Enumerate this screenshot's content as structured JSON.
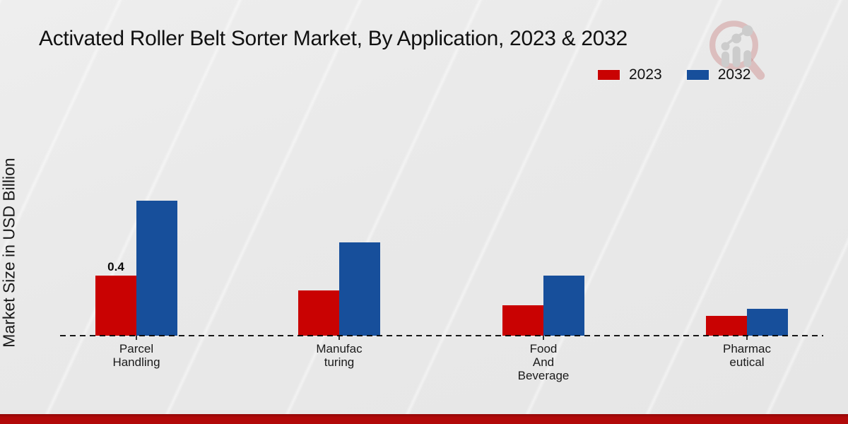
{
  "title": "Activated Roller Belt Sorter Market, By Application, 2023 & 2032",
  "y_axis_title": "Market Size in USD Billion",
  "legend": {
    "items": [
      {
        "label": "2023",
        "color": "#c90202"
      },
      {
        "label": "2032",
        "color": "#174f9b"
      }
    ]
  },
  "colors": {
    "series_2023": "#c90202",
    "series_2032": "#174f9b",
    "footer_strip": "#b20909",
    "baseline": "#1a1a1a",
    "background": "#e9e9e9",
    "watermark_ring": "#c97a7a",
    "watermark_bars": "#c7c7c7"
  },
  "watermark_icon": "magnifier-growth-chart-logo",
  "chart_data": {
    "type": "bar",
    "title": "Activated Roller Belt Sorter Market, By Application, 2023 & 2032",
    "xlabel": "",
    "ylabel": "Market Size in USD Billion",
    "categories": [
      "Parcel Handling",
      "Manufacturing",
      "Food And Beverage",
      "Pharmaceutical"
    ],
    "category_label_lines": [
      [
        "Parcel",
        "Handling"
      ],
      [
        "Manufac",
        "turing"
      ],
      [
        "Food",
        "And",
        "Beverage"
      ],
      [
        "Pharmac",
        "eutical"
      ]
    ],
    "series": [
      {
        "name": "2023",
        "color": "#c90202",
        "values": [
          0.4,
          0.3,
          0.2,
          0.13
        ]
      },
      {
        "name": "2032",
        "color": "#174f9b",
        "values": [
          0.9,
          0.62,
          0.4,
          0.18
        ]
      }
    ],
    "data_labels": [
      {
        "series": "2023",
        "category_index": 0,
        "text": "0.4"
      }
    ],
    "ylim": [
      0,
      1.0
    ],
    "grid": false,
    "y_ticks_visible": false,
    "legend_position": "top-right",
    "baseline_style": "dashed"
  }
}
